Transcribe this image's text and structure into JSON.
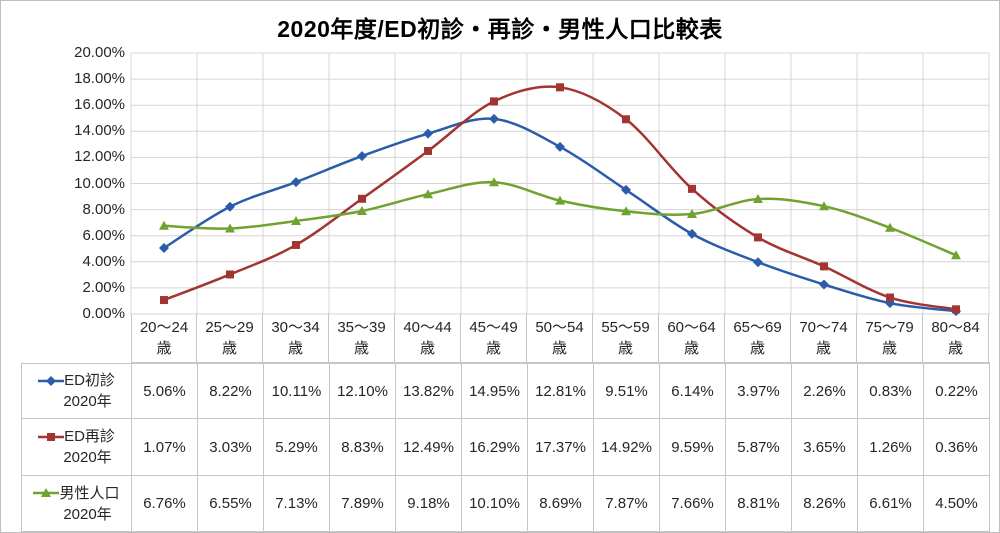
{
  "chart_data": {
    "type": "line",
    "title": "2020年度/ED初診・再診・男性人口比較表",
    "categories": [
      "20〜24歳",
      "25〜29歳",
      "30〜34歳",
      "35〜39歳",
      "40〜44歳",
      "45〜49歳",
      "50〜54歳",
      "55〜59歳",
      "60〜64歳",
      "65〜69歳",
      "70〜74歳",
      "75〜79歳",
      "80〜84歳"
    ],
    "category_unit": "歳",
    "series": [
      {
        "name": "ED初診 2020年",
        "name_lines": [
          "ED初診",
          "2020年"
        ],
        "marker": "diamond",
        "color": "#2b5ca9",
        "values": [
          5.06,
          8.22,
          10.11,
          12.1,
          13.82,
          14.95,
          12.81,
          9.51,
          6.14,
          3.97,
          2.26,
          0.83,
          0.22
        ]
      },
      {
        "name": "ED再診 2020年",
        "name_lines": [
          "ED再診",
          "2020年"
        ],
        "marker": "square",
        "color": "#a23431",
        "values": [
          1.07,
          3.03,
          5.29,
          8.83,
          12.49,
          16.29,
          17.37,
          14.92,
          9.59,
          5.87,
          3.65,
          1.26,
          0.36
        ]
      },
      {
        "name": "男性人口 2020年",
        "name_lines": [
          "男性人口",
          "2020年"
        ],
        "marker": "triangle",
        "color": "#6fa22f",
        "values": [
          6.76,
          6.55,
          7.13,
          7.89,
          9.18,
          10.1,
          8.69,
          7.87,
          7.66,
          8.81,
          8.26,
          6.61,
          4.5
        ]
      }
    ],
    "y_axis": {
      "min": 0,
      "max": 20,
      "step": 2,
      "tick_labels": [
        "20.00%",
        "18.00%",
        "16.00%",
        "14.00%",
        "12.00%",
        "10.00%",
        "8.00%",
        "6.00%",
        "4.00%",
        "2.00%",
        "0.00%"
      ]
    },
    "value_suffix": "%",
    "grid": true,
    "legend_position": "data-table-left",
    "colors": {
      "grid": "#d4d4d4",
      "border": "#c6c6c6",
      "text": "#262626",
      "title": "#000000"
    }
  }
}
